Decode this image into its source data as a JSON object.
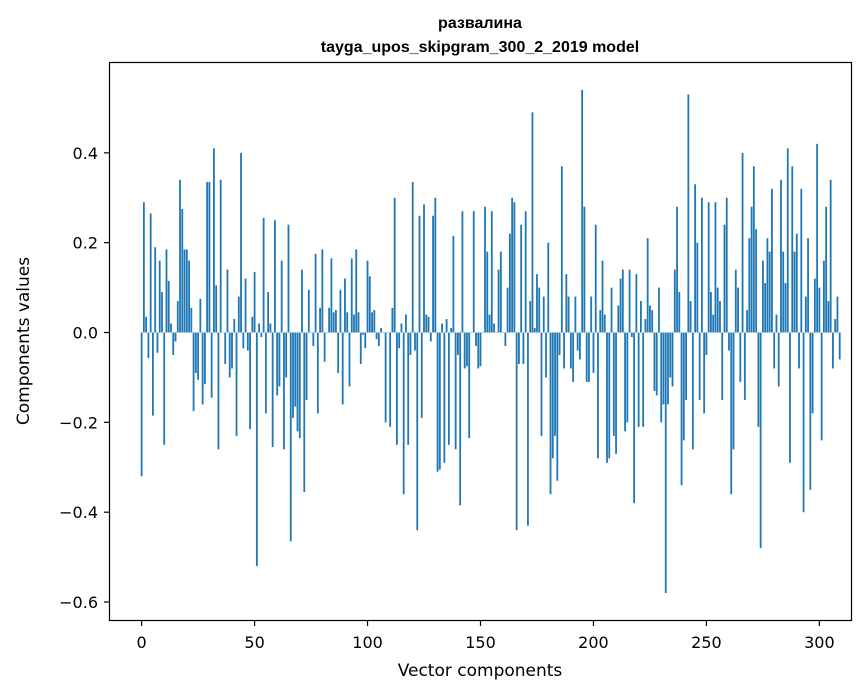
{
  "chart_data": {
    "type": "bar",
    "title": "развалина",
    "subtitle": "tayga_upos_skipgram_300_2_2019 model",
    "xlabel": "Vector components",
    "ylabel": "Components values",
    "xlim": [
      -14,
      314
    ],
    "ylim": [
      -0.64,
      0.6
    ],
    "xticks": [
      0,
      50,
      100,
      150,
      200,
      250,
      300
    ],
    "yticks": [
      -0.6,
      -0.4,
      -0.2,
      0.0,
      0.2,
      0.4
    ],
    "ytick_labels": [
      "−0.6",
      "−0.4",
      "−0.2",
      "0.0",
      "0.2",
      "0.4"
    ],
    "bar_color": "#1f77b4",
    "grid": false,
    "values": [
      -0.32,
      0.29,
      0.035,
      -0.057,
      0.265,
      -0.185,
      0.19,
      -0.045,
      0.16,
      0.09,
      -0.25,
      0.185,
      0.115,
      0.02,
      -0.05,
      -0.02,
      0.07,
      0.34,
      0.275,
      0.185,
      0.185,
      0.16,
      0.055,
      -0.175,
      -0.09,
      -0.105,
      0.075,
      -0.16,
      -0.115,
      0.335,
      0.335,
      -0.145,
      0.41,
      0.105,
      -0.26,
      0.34,
      0.0,
      -0.07,
      0.14,
      -0.1,
      -0.08,
      0.03,
      -0.23,
      0.08,
      0.4,
      -0.035,
      0.12,
      -0.04,
      -0.215,
      0.035,
      0.135,
      -0.52,
      0.02,
      -0.01,
      0.255,
      -0.18,
      0.09,
      0.02,
      -0.255,
      0.25,
      -0.14,
      -0.12,
      0.16,
      -0.26,
      -0.1,
      0.24,
      -0.465,
      -0.19,
      -0.165,
      -0.22,
      -0.235,
      0.14,
      -0.355,
      -0.15,
      0.095,
      0.0,
      -0.03,
      0.175,
      -0.18,
      0.055,
      0.185,
      -0.065,
      0.0,
      0.055,
      0.165,
      0.045,
      0.05,
      -0.09,
      0.095,
      -0.16,
      0.12,
      0.045,
      -0.12,
      0.165,
      0.04,
      0.185,
      0.045,
      -0.07,
      -0.005,
      -0.035,
      0.16,
      0.125,
      0.045,
      0.05,
      -0.015,
      -0.03,
      0.01,
      0.0,
      -0.2,
      0.0,
      -0.21,
      0.055,
      0.3,
      -0.25,
      -0.035,
      0.02,
      -0.36,
      0.04,
      -0.25,
      -0.05,
      0.335,
      -0.04,
      -0.44,
      0.26,
      -0.19,
      0.285,
      0.04,
      0.035,
      -0.02,
      0.26,
      0.3,
      -0.31,
      -0.305,
      0.02,
      -0.29,
      0.03,
      -0.25,
      0.01,
      0.215,
      -0.26,
      -0.05,
      -0.385,
      0.27,
      -0.08,
      -0.075,
      -0.235,
      0.0,
      0.27,
      -0.03,
      -0.08,
      -0.075,
      0.0,
      0.28,
      0.18,
      0.04,
      0.27,
      0.02,
      0.0,
      0.14,
      0.18,
      0.0,
      -0.03,
      0.1,
      0.22,
      0.3,
      0.29,
      -0.44,
      -0.07,
      0.24,
      -0.07,
      0.27,
      -0.43,
      0.07,
      0.49,
      0.01,
      0.13,
      0.1,
      -0.23,
      0.08,
      -0.1,
      0.2,
      -0.36,
      -0.28,
      -0.23,
      -0.33,
      -0.05,
      0.37,
      -0.08,
      0.13,
      0.08,
      -0.08,
      -0.11,
      0.08,
      -0.04,
      -0.06,
      0.54,
      0.28,
      -0.11,
      -0.11,
      0.08,
      -0.09,
      0.24,
      -0.28,
      0.05,
      0.16,
      0.04,
      -0.29,
      -0.28,
      0.1,
      -0.23,
      -0.27,
      0.06,
      0.12,
      0.14,
      -0.22,
      -0.2,
      0.14,
      -0.01,
      -0.38,
      0.13,
      -0.21,
      0.07,
      -0.21,
      0.03,
      0.21,
      0.06,
      0.05,
      -0.13,
      -0.14,
      0.1,
      -0.2,
      -0.16,
      -0.58,
      -0.16,
      -0.1,
      -0.12,
      0.14,
      0.28,
      0.09,
      -0.34,
      -0.24,
      -0.15,
      0.53,
      0.07,
      -0.26,
      0.33,
      0.2,
      -0.15,
      0.3,
      -0.18,
      -0.05,
      0.29,
      0.09,
      0.04,
      0.29,
      0.1,
      0.07,
      -0.15,
      0.24,
      0.3,
      -0.04,
      -0.36,
      -0.26,
      0.14,
      0.1,
      -0.11,
      0.4,
      -0.15,
      0.05,
      0.21,
      0.28,
      0.37,
      0.23,
      -0.21,
      -0.48,
      0.16,
      0.11,
      0.21,
      0.18,
      0.32,
      -0.08,
      0.04,
      -0.12,
      0.34,
      0.18,
      0.11,
      0.41,
      -0.29,
      0.37,
      0.18,
      0.22,
      -0.08,
      0.32,
      -0.4,
      0.08,
      0.21,
      -0.35,
      -0.18,
      0.12,
      0.42,
      0.1,
      -0.24,
      0.16,
      0.28,
      0.07,
      0.34,
      -0.08,
      0.03,
      0.08,
      -0.06
    ]
  }
}
